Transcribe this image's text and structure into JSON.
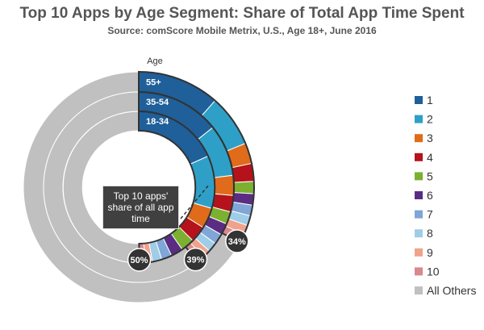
{
  "title": "Top 10 Apps by Age Segment: Share of Total App Time Spent",
  "subtitle": "Source: comScore Mobile Metrix, U.S., Age 18+, June 2016",
  "callout": "Top 10 apps' share of all app time",
  "chart_data": {
    "type": "donut",
    "axis_title": "Age",
    "categories": [
      "1",
      "2",
      "3",
      "4",
      "5",
      "6",
      "7",
      "8",
      "9",
      "10",
      "All Others"
    ],
    "colors": [
      "#1f5f9a",
      "#2ea0c8",
      "#e06b1a",
      "#b5121b",
      "#7bb030",
      "#5a2d82",
      "#7fa6d6",
      "#9fcde8",
      "#f1a28b",
      "#d9888c",
      "#c0c0c0"
    ],
    "series": [
      {
        "name": "55+",
        "values": [
          11.5,
          7.3,
          2.9,
          2.5,
          1.7,
          1.6,
          1.5,
          1.4,
          1.3,
          1.3,
          67
        ],
        "top10_share": "34%"
      },
      {
        "name": "35-54",
        "values": [
          14.2,
          8.8,
          3.4,
          2.8,
          2.1,
          2.0,
          1.8,
          1.6,
          1.4,
          1.3,
          60.6
        ],
        "top10_share": "39%"
      },
      {
        "name": "18-34",
        "values": [
          18.3,
          11.2,
          4.4,
          3.5,
          2.9,
          2.6,
          2.2,
          2.0,
          1.5,
          1.3,
          50.1
        ],
        "top10_share": "50%"
      }
    ],
    "legend_position": "right"
  }
}
